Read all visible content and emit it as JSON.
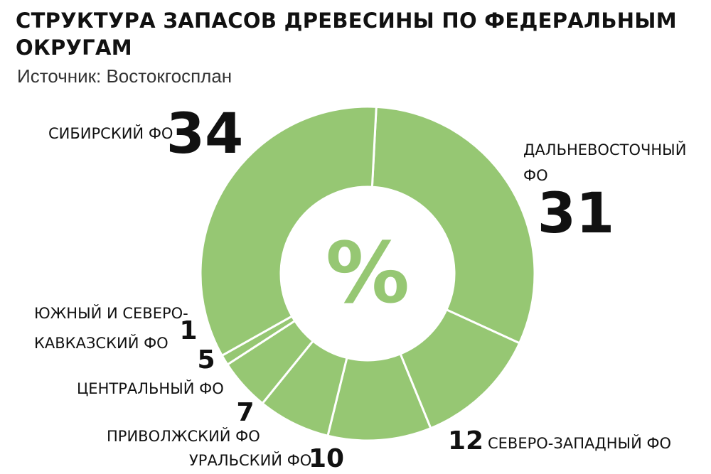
{
  "header": {
    "title": "СТРУКТУРА ЗАПАСОВ ДРЕВЕСИНЫ ПО ФЕДЕРАЛЬНЫМ ОКРУГАМ",
    "source": "Источник: Востокгосплан"
  },
  "center_symbol": "%",
  "colors": {
    "slice": "#96c773",
    "separator": "#ffffff",
    "text": "#111111"
  },
  "chart_data": {
    "type": "pie",
    "variant": "donut",
    "title": "СТРУКТУРА ЗАПАСОВ ДРЕВЕСИНЫ ПО ФЕДЕРАЛЬНЫМ ОКРУГАМ",
    "unit": "%",
    "slices": [
      {
        "label": "ДАЛЬНЕВОСТОЧНЫЙ ФО",
        "label_lines": [
          "ДАЛЬНЕВОСТОЧНЫЙ",
          "ФО"
        ],
        "value": 31
      },
      {
        "label": "СЕВЕРО-ЗАПАДНЫЙ ФО",
        "label_lines": [
          "СЕВЕРО-ЗАПАДНЫЙ ФО"
        ],
        "value": 12
      },
      {
        "label": "УРАЛЬСКИЙ ФО",
        "label_lines": [
          "УРАЛЬСКИЙ ФО"
        ],
        "value": 10
      },
      {
        "label": "ПРИВОЛЖСКИЙ ФО",
        "label_lines": [
          "ПРИВОЛЖСКИЙ ФО"
        ],
        "value": 7
      },
      {
        "label": "ЦЕНТРАЛЬНЫЙ ФО",
        "label_lines": [
          "ЦЕНТРАЛЬНЫЙ ФО"
        ],
        "value": 5
      },
      {
        "label": "ЮЖНЫЙ И СЕВЕРО-КАВКАЗСКИЙ ФО",
        "label_lines": [
          "ЮЖНЫЙ И СЕВЕРО-",
          "КАВКАЗСКИЙ ФО"
        ],
        "value": 1
      },
      {
        "label": "СИБИРСКИЙ ФО",
        "label_lines": [
          "СИБИРСКИЙ ФО"
        ],
        "value": 34
      }
    ]
  }
}
